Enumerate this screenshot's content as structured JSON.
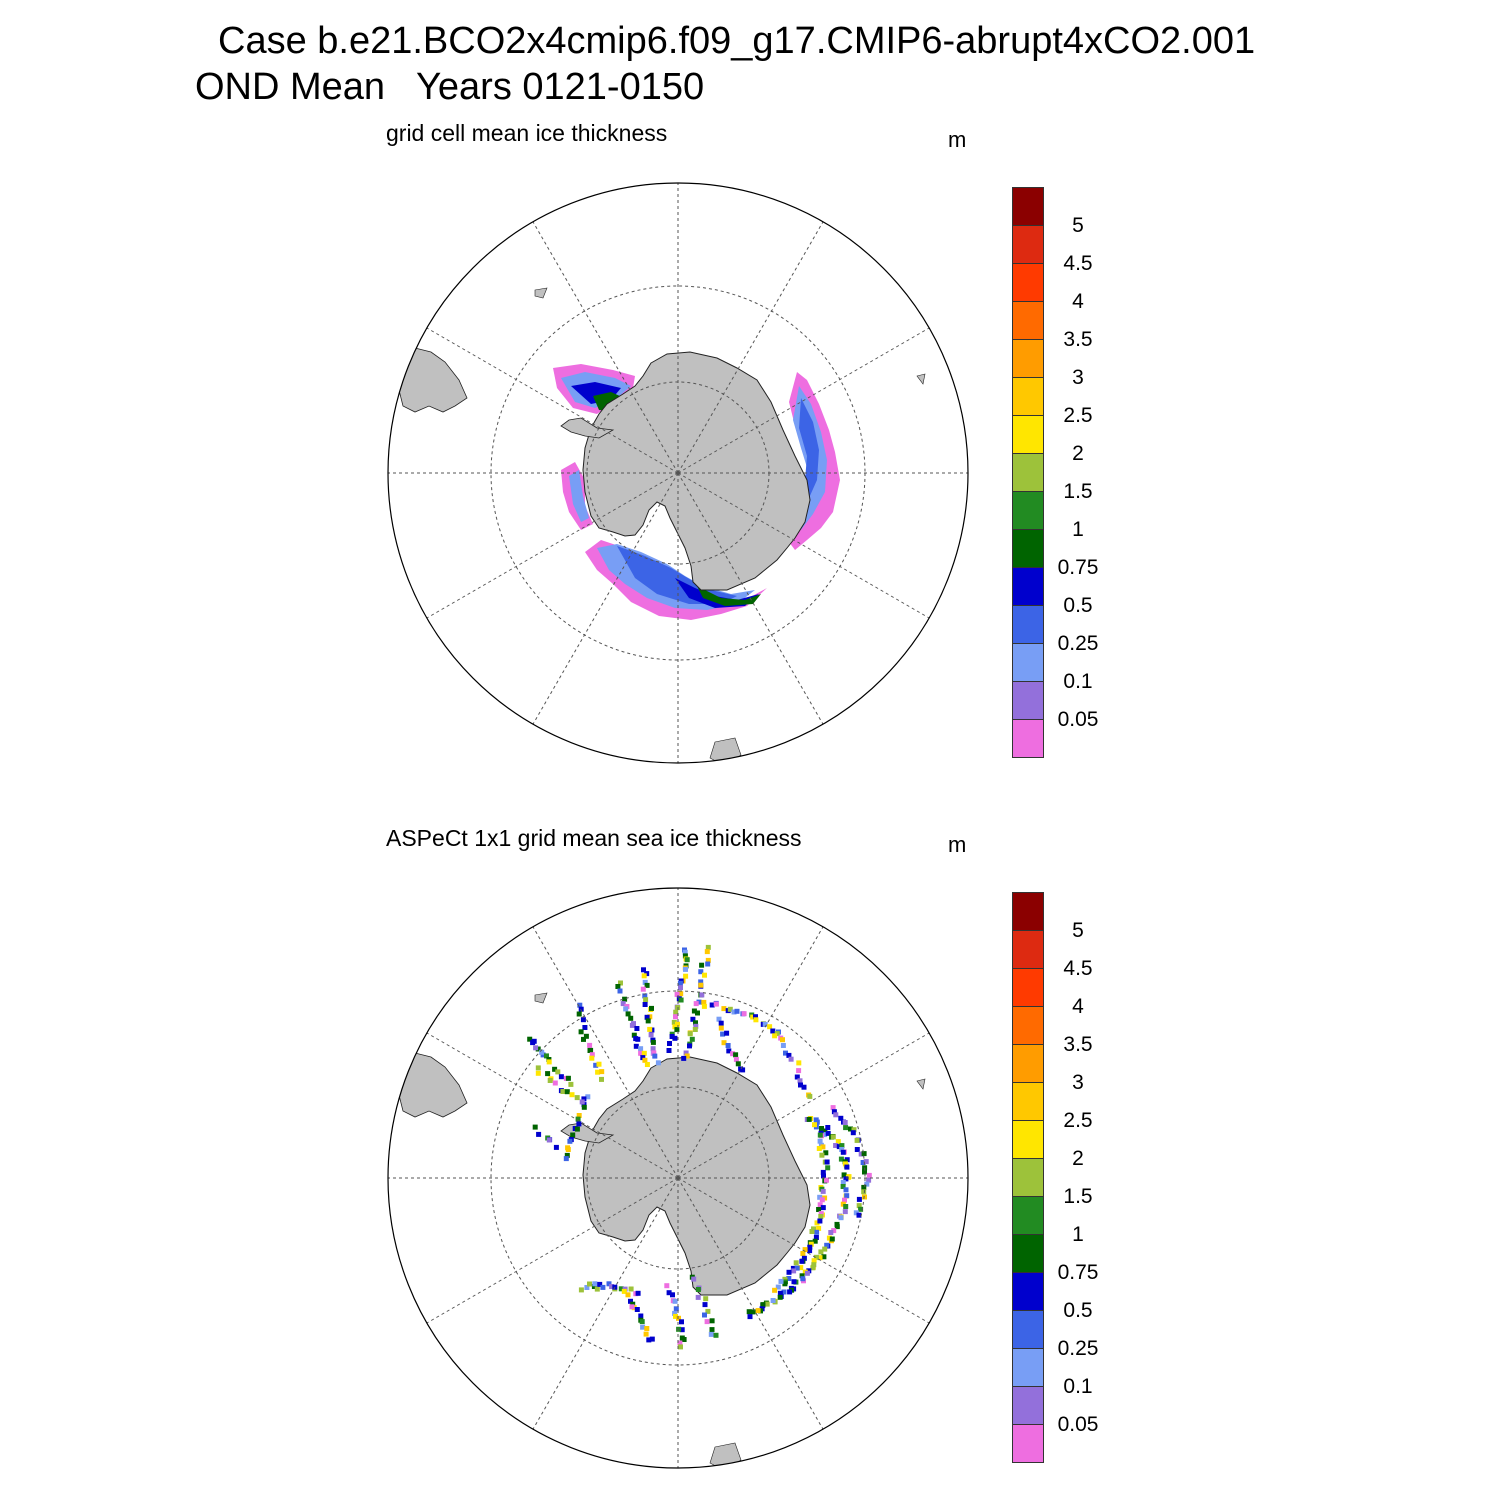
{
  "title_line1": "Case b.e21.BCO2x4cmip6.f09_g17.CMIP6-abrupt4xCO2.001",
  "title_line2": "OND Mean   Years 0121-0150",
  "panels": [
    {
      "title": "grid cell mean ice thickness",
      "units": "m"
    },
    {
      "title": "ASPeCt 1x1 grid mean sea ice thickness",
      "units": "m"
    }
  ],
  "colorbar": {
    "labels": [
      "5",
      "4.5",
      "4",
      "3.5",
      "3",
      "2.5",
      "2",
      "1.5",
      "1",
      "0.75",
      "0.5",
      "0.25",
      "0.1",
      "0.05"
    ],
    "colors": [
      "#8b0000",
      "#dd2a11",
      "#ff3a00",
      "#ff6a00",
      "#ff9c00",
      "#ffc800",
      "#ffe600",
      "#9dc23a",
      "#228b22",
      "#006400",
      "#0000cd",
      "#3c64e6",
      "#789ef5",
      "#9370db",
      "#ee6ee0"
    ]
  },
  "colors": {
    "land": "#c0c0c0",
    "grid": "#555555"
  }
}
